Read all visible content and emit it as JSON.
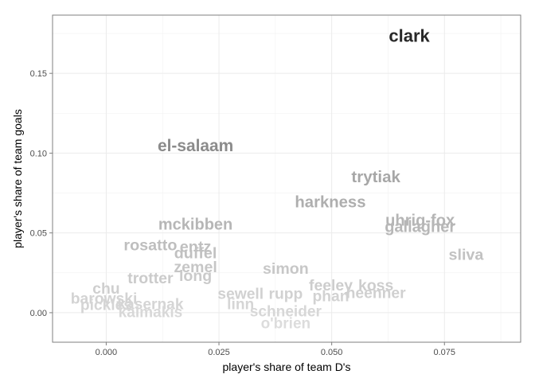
{
  "chart_data": {
    "type": "scatter",
    "marker": "text-label",
    "xlabel": "player's share of team D's",
    "ylabel": "player's share of team goals",
    "xlim": [
      -0.0119,
      0.0919
    ],
    "ylim": [
      -0.0185,
      0.1865
    ],
    "x_ticks": [
      0.0,
      0.025,
      0.05,
      0.075
    ],
    "x_tick_labels": [
      "0.000",
      "0.025",
      "0.050",
      "0.075"
    ],
    "y_ticks": [
      0.0,
      0.05,
      0.1,
      0.15
    ],
    "y_tick_labels": [
      "0.00",
      "0.05",
      "0.10",
      "0.15"
    ],
    "grid": true,
    "background": "#ffffff",
    "panel_border_color": "#7f7f7f",
    "grid_color": "#ebebeb",
    "label_color_scale": "grey level by goal share (light = low, dark = high)",
    "points": [
      {
        "label": "clark",
        "x": 0.0672,
        "y": 0.1735
      },
      {
        "label": "el-salaam",
        "x": 0.0198,
        "y": 0.1045
      },
      {
        "label": "trytiak",
        "x": 0.0598,
        "y": 0.085
      },
      {
        "label": "harkness",
        "x": 0.0497,
        "y": 0.069
      },
      {
        "label": "uhrig-fox",
        "x": 0.0696,
        "y": 0.0575
      },
      {
        "label": "gallagher",
        "x": 0.0696,
        "y": 0.0535
      },
      {
        "label": "sliva",
        "x": 0.0798,
        "y": 0.036
      },
      {
        "label": "mckibben",
        "x": 0.0198,
        "y": 0.055
      },
      {
        "label": "rosatto",
        "x": 0.0098,
        "y": 0.042
      },
      {
        "label": "entz",
        "x": 0.0198,
        "y": 0.041
      },
      {
        "label": "duffel",
        "x": 0.0198,
        "y": 0.037
      },
      {
        "label": "zemel",
        "x": 0.0198,
        "y": 0.0285
      },
      {
        "label": "long",
        "x": 0.0198,
        "y": 0.023
      },
      {
        "label": "trotter",
        "x": 0.0098,
        "y": 0.0215
      },
      {
        "label": "simon",
        "x": 0.0398,
        "y": 0.0275
      },
      {
        "label": "feeley",
        "x": 0.0498,
        "y": 0.017
      },
      {
        "label": "koss",
        "x": 0.0598,
        "y": 0.017
      },
      {
        "label": "phan",
        "x": 0.0498,
        "y": 0.01
      },
      {
        "label": "heenner",
        "x": 0.0598,
        "y": 0.012
      },
      {
        "label": "rupp",
        "x": 0.0398,
        "y": 0.0115
      },
      {
        "label": "sewell",
        "x": 0.0298,
        "y": 0.0115
      },
      {
        "label": "linn",
        "x": 0.0298,
        "y": 0.005
      },
      {
        "label": "schneider",
        "x": 0.0398,
        "y": 0.0005
      },
      {
        "label": "o'brien",
        "x": 0.0398,
        "y": -0.007
      },
      {
        "label": "chu",
        "x": 0.0,
        "y": 0.015
      },
      {
        "label": "barowski",
        "x": -0.0005,
        "y": 0.0085
      },
      {
        "label": "pickles",
        "x": 0.0,
        "y": 0.0045
      },
      {
        "label": "kasernak",
        "x": 0.0098,
        "y": 0.005
      },
      {
        "label": "kalmakis",
        "x": 0.0098,
        "y": 0.0
      }
    ]
  }
}
